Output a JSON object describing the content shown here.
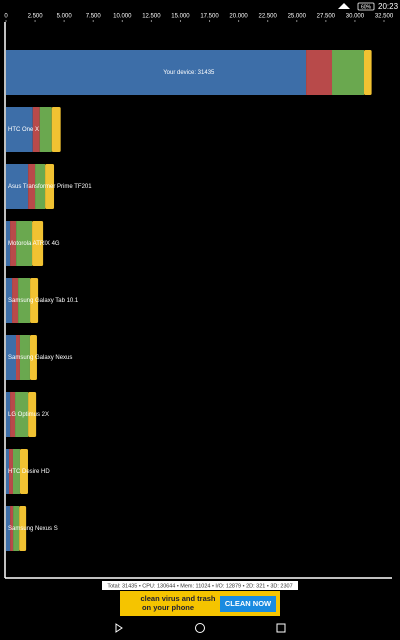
{
  "status_bar": {
    "battery": "60%",
    "time": "20:23"
  },
  "chart_data": {
    "type": "stacked-bar-horizontal",
    "categories": [
      "Your device: 31435",
      "HTC One X",
      "Asus Transformer Prime TF201",
      "Motorola ATRIX 4G",
      "Samsung Galaxy Tab 10.1",
      "Samsung Galaxy Nexus",
      "LG Optimus 2X",
      "HTC Desire HD",
      "Samsung Nexus S"
    ],
    "series": [
      {
        "color": "#3d6ea8",
        "values": [
          25800,
          2300,
          1900,
          350,
          520,
          860,
          350,
          260,
          350
        ]
      },
      {
        "color": "#b84a4a",
        "values": [
          2230,
          600,
          600,
          520,
          520,
          340,
          430,
          340,
          260
        ]
      },
      {
        "color": "#6aa84f",
        "values": [
          2750,
          1030,
          860,
          1370,
          1030,
          860,
          1120,
          600,
          520
        ]
      },
      {
        "color": "#f1c232",
        "values": [
          655,
          770,
          770,
          950,
          690,
          600,
          690,
          690,
          600
        ]
      }
    ],
    "xlim": [
      0,
      32500
    ],
    "xticks": [
      0,
      {
        "value": 2500,
        "label": "2.500"
      },
      {
        "value": 5000,
        "label": "5.000"
      },
      {
        "value": 7500,
        "label": "7.500"
      },
      {
        "value": 10000,
        "label": "10.000"
      },
      {
        "value": 12500,
        "label": "12.500"
      },
      {
        "value": 15000,
        "label": "15.000"
      },
      {
        "value": 17500,
        "label": "17.500"
      },
      {
        "value": 20000,
        "label": "20.000"
      },
      {
        "value": 22500,
        "label": "22.500"
      },
      {
        "value": 25000,
        "label": "25.000"
      },
      {
        "value": 27500,
        "label": "27.500"
      },
      {
        "value": 30000,
        "label": "30.000"
      },
      {
        "value": 32500,
        "label": "32.500"
      }
    ]
  },
  "footer": "Total: 31435 • CPU: 130644 • Mem: 11024 • I/O: 12879 • 2D: 321 • 3D: 2307",
  "ad": {
    "line1": "clean virus and trash",
    "line2": "on your phone",
    "button": "CLEAN NOW"
  }
}
